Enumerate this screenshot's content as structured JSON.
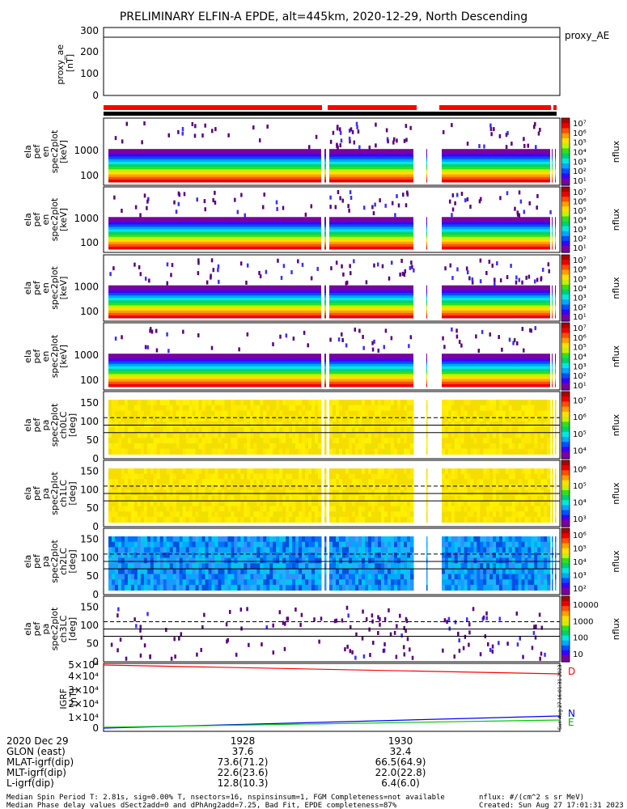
{
  "title": "PRELIMINARY ELFIN-A EPDE, alt=445km, 2020-12-29, North Descending",
  "colors": {
    "status_bar": "#ff0000",
    "igrf_d": "#ff0000",
    "igrf_n": "#0000ff",
    "igrf_e": "#00cc00"
  },
  "chart_data": [
    {
      "type": "line",
      "name": "proxy_ae",
      "ylabel": "proxy_ae [nT]",
      "ylabel_lines": [
        "proxy_ae",
        "[nT]"
      ],
      "legend": "proxy_AE",
      "yticks": [
        "0",
        "100",
        "200",
        "300"
      ],
      "ylim": [
        0,
        310
      ],
      "series": [
        {
          "values": [
            265,
            265
          ]
        }
      ]
    },
    {
      "type": "heatmap",
      "name": "energy-spectrogram-1",
      "ylabel_lines": [
        "ela",
        "pef",
        "en",
        "spec2plot",
        "[keV]"
      ],
      "yticks": [
        "100",
        "1000"
      ],
      "colorbar_label": "nflux",
      "colorbar_ticks": [
        "10¹",
        "10²",
        "10³",
        "10⁴",
        "10⁵",
        "10⁶",
        "10⁷"
      ]
    },
    {
      "type": "heatmap",
      "name": "energy-spectrogram-2",
      "ylabel_lines": [
        "ela",
        "pef",
        "en",
        "spec2plot",
        "[keV]"
      ],
      "yticks": [
        "100",
        "1000"
      ],
      "colorbar_label": "nflux",
      "colorbar_ticks": [
        "10¹",
        "10²",
        "10³",
        "10⁴",
        "10⁵",
        "10⁶",
        "10⁷"
      ]
    },
    {
      "type": "heatmap",
      "name": "energy-spectrogram-3",
      "ylabel_lines": [
        "ela",
        "pef",
        "en",
        "spec2plot",
        "[keV]"
      ],
      "yticks": [
        "100",
        "1000"
      ],
      "colorbar_label": "nflux",
      "colorbar_ticks": [
        "10¹",
        "10²",
        "10³",
        "10⁴",
        "10⁵",
        "10⁶",
        "10⁷"
      ]
    },
    {
      "type": "heatmap",
      "name": "energy-spectrogram-4",
      "ylabel_lines": [
        "ela",
        "pef",
        "en",
        "spec2plot",
        "[keV]"
      ],
      "yticks": [
        "100",
        "1000"
      ],
      "colorbar_label": "nflux",
      "colorbar_ticks": [
        "10¹",
        "10²",
        "10³",
        "10⁴",
        "10⁵",
        "10⁶",
        "10⁷"
      ]
    },
    {
      "type": "heatmap",
      "name": "pitch-angle-ch0LC",
      "ylabel_lines": [
        "ela",
        "pef",
        "pa",
        "spec2plot",
        "ch0LC",
        "[deg]"
      ],
      "yticks": [
        "0",
        "50",
        "100",
        "150"
      ],
      "ylim": [
        0,
        180
      ],
      "colorbar_label": "nflux",
      "colorbar_ticks": [
        "10⁴",
        "10⁵",
        "10⁶",
        "10⁷"
      ]
    },
    {
      "type": "heatmap",
      "name": "pitch-angle-ch1LC",
      "ylabel_lines": [
        "ela",
        "pef",
        "pa",
        "spec2plot",
        "ch1LC",
        "[deg]"
      ],
      "yticks": [
        "0",
        "50",
        "100",
        "150"
      ],
      "ylim": [
        0,
        180
      ],
      "colorbar_label": "nflux",
      "colorbar_ticks": [
        "10³",
        "10⁴",
        "10⁵",
        "10⁶"
      ]
    },
    {
      "type": "heatmap",
      "name": "pitch-angle-ch2LC",
      "ylabel_lines": [
        "ela",
        "pef",
        "pa",
        "spec2plot",
        "ch2LC",
        "[deg]"
      ],
      "yticks": [
        "0",
        "50",
        "100",
        "150"
      ],
      "ylim": [
        0,
        180
      ],
      "colorbar_label": "nflux",
      "colorbar_ticks": [
        "10²",
        "10³",
        "10⁴",
        "10⁵",
        "10⁶"
      ]
    },
    {
      "type": "heatmap",
      "name": "pitch-angle-ch3LC",
      "ylabel_lines": [
        "ela",
        "pef",
        "pa",
        "spec2plot",
        "ch3LC",
        "[deg]"
      ],
      "yticks": [
        "0",
        "50",
        "100",
        "150"
      ],
      "ylim": [
        0,
        180
      ],
      "colorbar_label": "nflux",
      "colorbar_ticks": [
        "10",
        "100",
        "1000",
        "10000"
      ]
    },
    {
      "type": "line",
      "name": "igrf-field",
      "ylabel_lines": [
        "IGRF",
        "[nT]"
      ],
      "yticks": [
        "0",
        "1×10⁴",
        "2×10⁴",
        "3×10⁴",
        "4×10⁴",
        "5×10⁴"
      ],
      "ylim": [
        0,
        50000
      ],
      "series": [
        {
          "name": "D",
          "values": [
            49000,
            41500
          ]
        },
        {
          "name": "N",
          "values": [
            0,
            9500
          ]
        },
        {
          "name": "E",
          "values": [
            500,
            6500
          ]
        }
      ]
    }
  ],
  "footer": {
    "rows": [
      {
        "label": "2020 Dec 29",
        "v1": "1928",
        "v2": "1930"
      },
      {
        "label": "GLON (east)",
        "v1": "37.6",
        "v2": "32.4"
      },
      {
        "label": "MLAT-igrf(dip)",
        "v1": "73.6(71.2)",
        "v2": "66.5(64.9)"
      },
      {
        "label": "MLT-igrf(dip)",
        "v1": "22.6(23.6)",
        "v2": "22.0(22.8)"
      },
      {
        "label": "L-igrf(dip)",
        "v1": "12.8(10.3)",
        "v2": "6.4(6.0)"
      }
    ],
    "note1": "Median Spin Period T: 2.81s, sig=0.00% T, nsectors=16, nspinsinsum=1, FGM Completeness=not available",
    "note2": "Median Phase delay values dSect2add=0 and dPhAng2add=7.25, Bad Fit, EPDE completeness=87%",
    "units": "nflux: #/(cm^2 s sr MeV)",
    "created": "Created: Sun Aug 27 17:01:31 2023",
    "side_stamp": "Sun Aug 27 16:01:31 2023"
  }
}
